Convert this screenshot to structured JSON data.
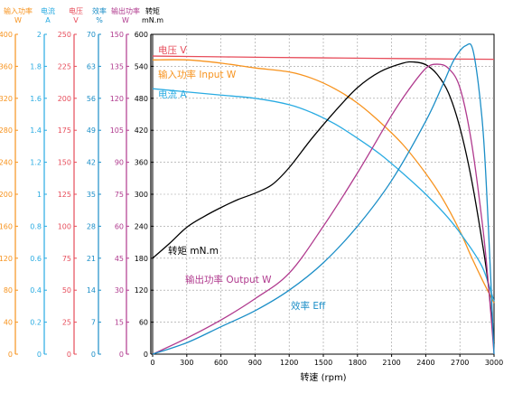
{
  "chart_data": {
    "type": "line",
    "x_axis": {
      "label": "转速 (rpm)",
      "range": [
        0,
        3000
      ],
      "ticks": [
        0,
        300,
        600,
        900,
        1200,
        1500,
        1800,
        2100,
        2400,
        2700,
        3000
      ]
    },
    "y_axes": [
      {
        "id": "input_power",
        "header": [
          "输入功率",
          "W"
        ],
        "color": "#f7931e",
        "range": [
          0,
          400
        ],
        "ticks": [
          0,
          40,
          80,
          120,
          160,
          200,
          240,
          280,
          320,
          360,
          400
        ]
      },
      {
        "id": "current",
        "header": [
          "电流",
          "A"
        ],
        "color": "#29abe2",
        "range": [
          0,
          2
        ],
        "ticks": [
          "0",
          "0.2",
          "0.4",
          "0.6",
          "0.8",
          "1",
          "1.2",
          "1.4",
          "1.6",
          "1.8",
          "2"
        ]
      },
      {
        "id": "voltage",
        "header": [
          "电压",
          "V"
        ],
        "color": "#e74c5a",
        "range": [
          0,
          250
        ],
        "ticks": [
          0,
          25,
          50,
          75,
          100,
          125,
          150,
          175,
          200,
          225,
          250
        ]
      },
      {
        "id": "efficiency",
        "header": [
          "效率",
          "%"
        ],
        "color": "#1b8ec7",
        "range": [
          0,
          70
        ],
        "ticks": [
          0,
          7,
          14,
          21,
          28,
          35,
          42,
          49,
          56,
          63,
          70
        ]
      },
      {
        "id": "output_power",
        "header": [
          "输出功率",
          "W"
        ],
        "color": "#b03a8e",
        "range": [
          0,
          150
        ],
        "ticks": [
          0,
          15,
          30,
          45,
          60,
          75,
          90,
          105,
          120,
          135,
          150
        ]
      },
      {
        "id": "torque",
        "header": [
          "转矩",
          "mN.m"
        ],
        "color": "#000000",
        "range": [
          0,
          600
        ],
        "ticks": [
          0,
          60,
          120,
          180,
          240,
          300,
          360,
          420,
          480,
          540,
          600
        ]
      }
    ],
    "grid": true,
    "series": [
      {
        "name": "电压 V",
        "axis": "voltage",
        "color": "#e74c5a",
        "x": [
          0,
          500,
          1000,
          1500,
          2000,
          2500,
          3000
        ],
        "y": [
          233,
          232.5,
          232,
          231.6,
          231.2,
          230.8,
          230.5
        ]
      },
      {
        "name": "输入功率 Input W",
        "axis": "input_power",
        "color": "#f7931e",
        "x": [
          0,
          300,
          600,
          900,
          1200,
          1400,
          1600,
          1800,
          2000,
          2200,
          2400,
          2550,
          2700,
          2800,
          2900,
          3000
        ],
        "y": [
          368,
          368,
          364,
          358,
          353,
          345,
          332,
          314,
          290,
          262,
          226,
          194,
          154,
          122,
          92,
          64
        ]
      },
      {
        "name": "电流 A",
        "axis": "current",
        "color": "#29abe2",
        "x": [
          0,
          300,
          600,
          900,
          1200,
          1400,
          1600,
          1800,
          2000,
          2200,
          2400,
          2600,
          2750,
          2900,
          3000
        ],
        "y": [
          1.66,
          1.64,
          1.62,
          1.6,
          1.56,
          1.51,
          1.44,
          1.35,
          1.25,
          1.13,
          1.0,
          0.85,
          0.71,
          0.54,
          0.33
        ]
      },
      {
        "name": "转矩 mN.m",
        "axis": "torque",
        "color": "#000000",
        "x": [
          0,
          150,
          300,
          450,
          600,
          750,
          900,
          1050,
          1200,
          1400,
          1600,
          1800,
          2000,
          2200,
          2300,
          2400,
          2500,
          2600,
          2700,
          2800,
          2900,
          2950,
          3000
        ],
        "y": [
          180,
          208,
          238,
          258,
          275,
          290,
          302,
          318,
          350,
          405,
          455,
          500,
          530,
          546,
          548,
          543,
          525,
          490,
          425,
          330,
          205,
          130,
          20
        ]
      },
      {
        "name": "输出功率 Output W",
        "axis": "output_power",
        "color": "#b03a8e",
        "x": [
          0,
          300,
          600,
          900,
          1200,
          1500,
          1800,
          2100,
          2250,
          2400,
          2500,
          2600,
          2700,
          2800,
          2900,
          2950,
          3000
        ],
        "y": [
          0,
          7.5,
          16,
          26,
          38,
          60,
          85,
          112,
          124,
          134,
          136,
          134,
          125,
          100,
          60,
          33,
          0
        ]
      },
      {
        "name": "效率 Eff",
        "axis": "efficiency",
        "color": "#1b8ec7",
        "x": [
          0,
          300,
          600,
          900,
          1200,
          1500,
          1800,
          2100,
          2400,
          2550,
          2650,
          2750,
          2820,
          2900,
          2950,
          3000
        ],
        "y": [
          0,
          2.5,
          6,
          9.5,
          14,
          20,
          28,
          38,
          51,
          59,
          64.5,
          67.5,
          66,
          50,
          28,
          0
        ]
      }
    ],
    "annotations": [
      {
        "text": "电压 V",
        "color": "#e74c5a"
      },
      {
        "text": "输入功率 Input W",
        "color": "#f7931e"
      },
      {
        "text": "电流 A",
        "color": "#29abe2"
      },
      {
        "text": "转矩 mN.m",
        "color": "#000000"
      },
      {
        "text": "输出功率 Output W",
        "color": "#b03a8e"
      },
      {
        "text": "效率 Eff",
        "color": "#1b8ec7"
      }
    ]
  }
}
